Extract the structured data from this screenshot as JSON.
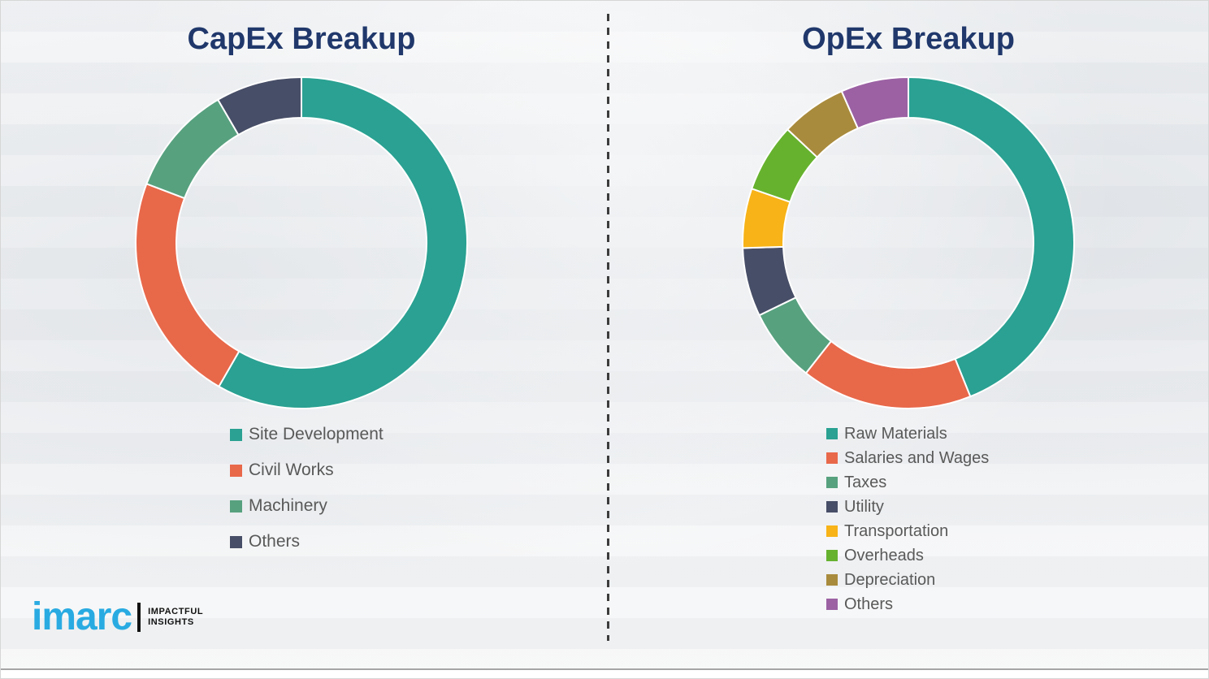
{
  "styles": {
    "title_color": "#20386B",
    "legend_text_color": "#595959",
    "background_color": "#F2F3F5",
    "divider_color": "#3C3C3C"
  },
  "chart_data": [
    {
      "type": "donut",
      "title": "CapEx Breakup",
      "labels": [
        "Site Development",
        "Civil Works",
        "Machinery",
        "Others"
      ],
      "values": [
        58.3,
        22.5,
        10.8,
        8.4
      ],
      "colors": [
        "#2AA192",
        "#E8684A",
        "#57A17F",
        "#474E67"
      ],
      "values_are_percent_estimates": true,
      "start_angle_deg": 0,
      "direction": "clockwise",
      "legend_position": "below-left"
    },
    {
      "type": "donut",
      "title": "OpEx Breakup",
      "labels": [
        "Raw Materials",
        "Salaries and Wages",
        "Taxes",
        "Utility",
        "Transportation",
        "Overheads",
        "Depreciation",
        "Others"
      ],
      "values": [
        43.9,
        16.7,
        7.2,
        6.7,
        5.8,
        6.7,
        6.4,
        6.6
      ],
      "colors": [
        "#2AA192",
        "#E8684A",
        "#57A17F",
        "#474E67",
        "#F7B317",
        "#66B22E",
        "#A98B3D",
        "#9B61A3"
      ],
      "values_are_percent_estimates": true,
      "start_angle_deg": 0,
      "direction": "clockwise",
      "legend_position": "below-left"
    }
  ],
  "logo": {
    "brand": "imarc",
    "brand_color": "#29ABE2",
    "tagline_line1": "IMPACTFUL",
    "tagline_line2": "INSIGHTS"
  }
}
